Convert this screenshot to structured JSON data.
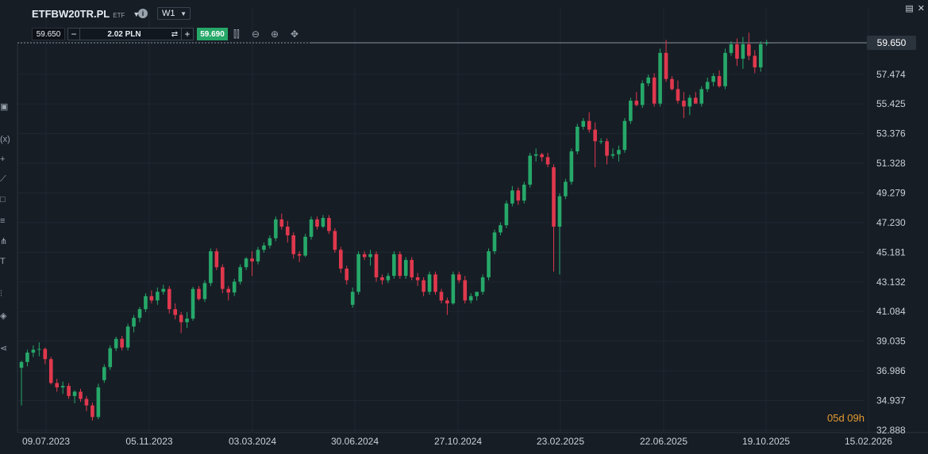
{
  "header": {
    "symbol": "ETFBW20TR.PL",
    "type_badge": "ETF",
    "timeframe": "W1",
    "info_icon": "info-icon"
  },
  "trade_panel": {
    "bid": "59.650",
    "minus": "−",
    "quantity": "2.02 PLN",
    "swap_icon": "swap-icon",
    "plus": "+",
    "ask": "59.690"
  },
  "toolbar_icons": [
    "candles-icon",
    "zoom-out-icon",
    "zoom-in-icon",
    "crosshair-icon"
  ],
  "current_price_label": "59.650",
  "countdown": "05d 09h",
  "colors": {
    "up": "#26a869",
    "down": "#e0384d",
    "background": "#161d25",
    "ask": "#26a869",
    "countdown": "#e49a2f"
  },
  "chart_data": {
    "type": "candlestick",
    "title": "ETFBW20TR.PL",
    "timeframe": "W1",
    "y_ticks": [
      "59.650",
      "57.474",
      "55.425",
      "53.376",
      "51.328",
      "49.279",
      "47.230",
      "45.181",
      "43.132",
      "41.084",
      "39.035",
      "36.986",
      "34.937",
      "32.888"
    ],
    "x_ticks": [
      "09.07.2023",
      "05.11.2023",
      "03.03.2024",
      "30.06.2024",
      "27.10.2024",
      "23.02.2025",
      "22.06.2025",
      "19.10.2025",
      "15.02.2026"
    ],
    "ylim": [
      32.4,
      60.6
    ],
    "current_price": 59.65,
    "grid": true,
    "candles": [
      [
        37.2,
        37.7,
        34.6,
        37.6
      ],
      [
        37.6,
        38.45,
        37.3,
        38.25
      ],
      [
        38.25,
        38.75,
        37.95,
        38.45
      ],
      [
        38.45,
        38.95,
        38.0,
        38.5
      ],
      [
        38.5,
        38.6,
        37.45,
        37.8
      ],
      [
        37.8,
        37.95,
        36.05,
        36.15
      ],
      [
        36.15,
        36.45,
        35.55,
        35.85
      ],
      [
        35.85,
        36.25,
        35.4,
        35.95
      ],
      [
        35.95,
        36.15,
        35.05,
        35.25
      ],
      [
        35.25,
        35.65,
        34.75,
        35.55
      ],
      [
        35.55,
        35.75,
        34.85,
        35.05
      ],
      [
        35.05,
        35.25,
        34.2,
        34.6
      ],
      [
        34.6,
        34.8,
        33.55,
        33.8
      ],
      [
        33.8,
        36.1,
        33.65,
        35.85
      ],
      [
        36.35,
        37.45,
        36.15,
        37.25
      ],
      [
        37.25,
        38.75,
        37.05,
        38.55
      ],
      [
        38.55,
        39.35,
        38.35,
        39.2
      ],
      [
        39.2,
        39.4,
        38.4,
        38.6
      ],
      [
        38.6,
        40.25,
        38.4,
        40.05
      ],
      [
        40.05,
        40.85,
        39.65,
        40.65
      ],
      [
        40.65,
        41.4,
        40.35,
        41.25
      ],
      [
        41.25,
        42.35,
        41.05,
        42.15
      ],
      [
        42.15,
        42.55,
        41.65,
        41.85
      ],
      [
        41.85,
        42.75,
        41.55,
        42.45
      ],
      [
        42.45,
        42.95,
        42.25,
        42.65
      ],
      [
        42.65,
        42.85,
        40.95,
        41.25
      ],
      [
        41.25,
        41.65,
        40.55,
        40.85
      ],
      [
        40.85,
        41.05,
        39.6,
        40.35
      ],
      [
        40.35,
        41.05,
        39.95,
        40.6
      ],
      [
        40.6,
        42.8,
        40.45,
        42.65
      ],
      [
        42.65,
        42.85,
        41.85,
        41.95
      ],
      [
        41.95,
        43.25,
        41.75,
        43.05
      ],
      [
        43.05,
        45.45,
        42.85,
        45.25
      ],
      [
        45.25,
        45.45,
        43.95,
        44.15
      ],
      [
        44.15,
        44.35,
        42.35,
        42.65
      ],
      [
        42.65,
        42.85,
        41.85,
        42.4
      ],
      [
        42.4,
        43.35,
        42.15,
        43.15
      ],
      [
        43.15,
        44.35,
        42.95,
        44.15
      ],
      [
        44.15,
        44.85,
        43.95,
        44.75
      ],
      [
        44.75,
        45.25,
        43.55,
        44.55
      ],
      [
        44.55,
        45.55,
        44.35,
        45.35
      ],
      [
        45.35,
        45.85,
        45.15,
        45.65
      ],
      [
        45.65,
        46.35,
        45.45,
        46.15
      ],
      [
        46.15,
        47.65,
        45.95,
        47.45
      ],
      [
        47.45,
        47.85,
        46.75,
        46.95
      ],
      [
        46.95,
        47.35,
        45.85,
        46.35
      ],
      [
        46.35,
        46.55,
        44.75,
        45.05
      ],
      [
        45.05,
        45.25,
        44.5,
        44.95
      ],
      [
        44.95,
        46.45,
        44.85,
        46.25
      ],
      [
        46.25,
        47.65,
        46.05,
        47.45
      ],
      [
        47.45,
        47.65,
        46.75,
        46.95
      ],
      [
        46.95,
        47.75,
        46.85,
        47.55
      ],
      [
        47.55,
        47.75,
        46.45,
        46.65
      ],
      [
        46.65,
        46.85,
        45.15,
        45.35
      ],
      [
        45.35,
        45.55,
        43.75,
        44.05
      ],
      [
        44.05,
        44.25,
        42.95,
        43.25
      ],
      [
        41.55,
        42.75,
        41.35,
        42.45
      ],
      [
        42.45,
        45.25,
        42.25,
        45.05
      ],
      [
        45.05,
        45.25,
        44.65,
        44.85
      ],
      [
        44.85,
        45.35,
        44.25,
        45.05
      ],
      [
        45.05,
        45.25,
        43.15,
        43.45
      ],
      [
        43.45,
        43.65,
        42.95,
        43.25
      ],
      [
        43.25,
        43.75,
        43.05,
        43.55
      ],
      [
        43.55,
        45.25,
        43.35,
        45.05
      ],
      [
        45.05,
        45.25,
        43.35,
        43.55
      ],
      [
        43.55,
        44.85,
        43.35,
        44.65
      ],
      [
        44.65,
        44.85,
        43.25,
        43.45
      ],
      [
        43.45,
        43.75,
        42.85,
        43.25
      ],
      [
        43.25,
        43.45,
        42.15,
        42.45
      ],
      [
        42.45,
        43.85,
        42.25,
        43.65
      ],
      [
        43.65,
        43.85,
        42.25,
        42.45
      ],
      [
        42.45,
        42.65,
        41.65,
        41.85
      ],
      [
        41.85,
        42.05,
        40.85,
        41.65
      ],
      [
        41.65,
        43.85,
        41.55,
        43.65
      ],
      [
        43.65,
        43.85,
        43.05,
        43.25
      ],
      [
        43.25,
        43.55,
        41.65,
        41.85
      ],
      [
        41.85,
        42.35,
        41.65,
        42.15
      ],
      [
        42.15,
        42.35,
        41.85,
        42.45
      ],
      [
        42.45,
        43.65,
        42.25,
        43.45
      ],
      [
        43.45,
        45.45,
        43.25,
        45.25
      ],
      [
        45.25,
        46.75,
        45.05,
        46.55
      ],
      [
        46.55,
        47.25,
        46.35,
        47.05
      ],
      [
        47.05,
        48.75,
        46.85,
        48.55
      ],
      [
        48.55,
        49.75,
        48.35,
        49.45
      ],
      [
        49.45,
        49.65,
        48.45,
        48.75
      ],
      [
        48.75,
        50.05,
        48.55,
        49.85
      ],
      [
        49.85,
        52.05,
        49.65,
        51.85
      ],
      [
        51.85,
        52.35,
        51.45,
        51.95
      ],
      [
        51.95,
        52.05,
        51.45,
        51.75
      ],
      [
        51.75,
        52.05,
        51.05,
        51.25
      ],
      [
        51.05,
        51.25,
        43.85,
        46.95
      ],
      [
        46.95,
        49.25,
        43.65,
        49.05
      ],
      [
        49.05,
        50.25,
        48.85,
        50.05
      ],
      [
        50.05,
        52.35,
        49.85,
        52.15
      ],
      [
        52.15,
        54.05,
        51.95,
        53.85
      ],
      [
        53.85,
        54.45,
        53.65,
        54.25
      ],
      [
        54.25,
        54.85,
        53.45,
        53.65
      ],
      [
        53.65,
        54.15,
        51.05,
        52.85
      ],
      [
        52.85,
        53.05,
        52.65,
        52.85
      ],
      [
        52.85,
        53.05,
        51.25,
        51.85
      ],
      [
        51.85,
        52.35,
        51.65,
        51.95
      ],
      [
        51.95,
        52.55,
        51.45,
        52.25
      ],
      [
        52.25,
        54.45,
        52.05,
        54.25
      ],
      [
        54.25,
        55.85,
        54.05,
        55.65
      ],
      [
        55.65,
        56.25,
        55.25,
        55.35
      ],
      [
        55.35,
        57.05,
        55.15,
        56.85
      ],
      [
        56.85,
        57.45,
        56.65,
        57.25
      ],
      [
        57.25,
        57.55,
        55.25,
        55.45
      ],
      [
        55.45,
        59.25,
        55.25,
        58.95
      ],
      [
        58.95,
        59.85,
        56.95,
        57.15
      ],
      [
        57.15,
        57.35,
        56.35,
        56.45
      ],
      [
        56.45,
        57.05,
        55.45,
        55.65
      ],
      [
        55.65,
        56.25,
        54.45,
        55.25
      ],
      [
        55.25,
        56.05,
        54.65,
        55.85
      ],
      [
        55.85,
        56.25,
        55.45,
        55.45
      ],
      [
        55.45,
        56.65,
        55.25,
        56.45
      ],
      [
        56.45,
        57.25,
        56.25,
        56.95
      ],
      [
        56.95,
        57.55,
        56.65,
        57.35
      ],
      [
        57.35,
        57.75,
        56.55,
        56.65
      ],
      [
        56.65,
        59.25,
        56.45,
        58.95
      ],
      [
        58.95,
        59.75,
        58.75,
        59.55
      ],
      [
        59.55,
        59.95,
        58.05,
        58.55
      ],
      [
        58.55,
        60.05,
        57.85,
        59.55
      ],
      [
        59.55,
        60.35,
        58.45,
        58.75
      ],
      [
        58.75,
        59.15,
        57.55,
        57.95
      ],
      [
        57.95,
        59.75,
        57.65,
        59.55
      ],
      [
        59.65,
        59.85,
        59.45,
        59.65
      ]
    ]
  }
}
